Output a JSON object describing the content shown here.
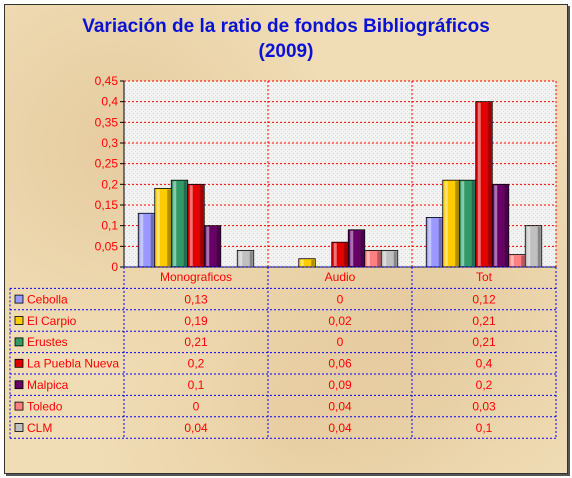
{
  "title_line1": "Variación de la ratio de fondos Bibliográficos",
  "title_line2": "(2009)",
  "chart_data": {
    "type": "bar",
    "title": "Variación de la ratio de fondos Bibliográficos (2009)",
    "categories": [
      "Monograficos",
      "Audio",
      "Tot"
    ],
    "ylim": [
      0,
      0.45
    ],
    "yticks": [
      "0",
      "0,05",
      "0,1",
      "0,15",
      "0,2",
      "0,25",
      "0,3",
      "0,35",
      "0,4",
      "0,45"
    ],
    "grid": true,
    "legend": "data-table-left",
    "series": [
      {
        "name": "Cebolla",
        "color": "#9999ff",
        "values": [
          0.13,
          0,
          0.12
        ],
        "labels": [
          "0,13",
          "0",
          "0,12"
        ]
      },
      {
        "name": "El Carpio",
        "color": "#ffcc00",
        "values": [
          0.19,
          0.02,
          0.21
        ],
        "labels": [
          "0,19",
          "0,02",
          "0,21"
        ]
      },
      {
        "name": "Erustes",
        "color": "#339966",
        "values": [
          0.21,
          0,
          0.21
        ],
        "labels": [
          "0,21",
          "0",
          "0,21"
        ]
      },
      {
        "name": "La Puebla Nueva",
        "color": "#e00000",
        "values": [
          0.2,
          0.06,
          0.4
        ],
        "labels": [
          "0,2",
          "0,06",
          "0,4"
        ]
      },
      {
        "name": "Malpica",
        "color": "#660066",
        "values": [
          0.1,
          0.09,
          0.2
        ],
        "labels": [
          "0,1",
          "0,09",
          "0,2"
        ]
      },
      {
        "name": "Toledo",
        "color": "#ff8080",
        "values": [
          0,
          0.04,
          0.03
        ],
        "labels": [
          "0",
          "0,04",
          "0,03"
        ]
      },
      {
        "name": "CLM",
        "color": "#c0c0c0",
        "values": [
          0.04,
          0.04,
          0.1
        ],
        "labels": [
          "0,04",
          "0,04",
          "0,1"
        ]
      }
    ]
  }
}
